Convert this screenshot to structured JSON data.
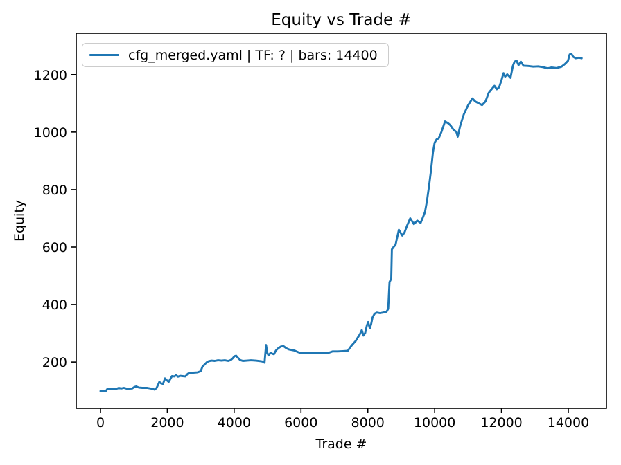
{
  "chart_data": {
    "type": "line",
    "title": "Equity vs Trade #",
    "xlabel": "Trade #",
    "ylabel": "Equity",
    "legend": "cfg_merged.yaml | TF: ? | bars: 14400",
    "legend_position": "upper left",
    "grid": false,
    "line_color": "#1f77b4",
    "axis_color": "#000000",
    "legend_border_color": "#cccccc",
    "xlim": [
      -726,
      15141
    ],
    "ylim": [
      39,
      1344
    ],
    "x_ticks": [
      0,
      2000,
      4000,
      6000,
      8000,
      10000,
      12000,
      14000
    ],
    "y_ticks": [
      200,
      400,
      600,
      800,
      1000,
      1200
    ],
    "points": [
      [
        0,
        99
      ],
      [
        160,
        99
      ],
      [
        210,
        107
      ],
      [
        480,
        107
      ],
      [
        550,
        110
      ],
      [
        620,
        108
      ],
      [
        700,
        110
      ],
      [
        800,
        107
      ],
      [
        950,
        108
      ],
      [
        1010,
        113
      ],
      [
        1070,
        115
      ],
      [
        1150,
        111
      ],
      [
        1250,
        110
      ],
      [
        1400,
        110
      ],
      [
        1550,
        107
      ],
      [
        1620,
        104
      ],
      [
        1680,
        110
      ],
      [
        1720,
        120
      ],
      [
        1760,
        131
      ],
      [
        1810,
        126
      ],
      [
        1870,
        124
      ],
      [
        1930,
        143
      ],
      [
        1990,
        136
      ],
      [
        2040,
        131
      ],
      [
        2090,
        141
      ],
      [
        2140,
        151
      ],
      [
        2210,
        150
      ],
      [
        2260,
        154
      ],
      [
        2320,
        149
      ],
      [
        2380,
        152
      ],
      [
        2460,
        151
      ],
      [
        2540,
        150
      ],
      [
        2600,
        158
      ],
      [
        2660,
        163
      ],
      [
        2780,
        163
      ],
      [
        2900,
        164
      ],
      [
        3000,
        168
      ],
      [
        3050,
        184
      ],
      [
        3120,
        192
      ],
      [
        3180,
        199
      ],
      [
        3240,
        203
      ],
      [
        3320,
        205
      ],
      [
        3420,
        204
      ],
      [
        3520,
        206
      ],
      [
        3620,
        205
      ],
      [
        3720,
        206
      ],
      [
        3820,
        204
      ],
      [
        3900,
        207
      ],
      [
        3960,
        213
      ],
      [
        4010,
        220
      ],
      [
        4060,
        222
      ],
      [
        4110,
        215
      ],
      [
        4180,
        207
      ],
      [
        4260,
        204
      ],
      [
        4380,
        205
      ],
      [
        4500,
        206
      ],
      [
        4650,
        205
      ],
      [
        4800,
        203
      ],
      [
        4870,
        201
      ],
      [
        4910,
        198
      ],
      [
        4955,
        259
      ],
      [
        4990,
        232
      ],
      [
        5030,
        223
      ],
      [
        5090,
        232
      ],
      [
        5140,
        229
      ],
      [
        5190,
        227
      ],
      [
        5250,
        240
      ],
      [
        5310,
        247
      ],
      [
        5400,
        254
      ],
      [
        5480,
        255
      ],
      [
        5560,
        248
      ],
      [
        5640,
        244
      ],
      [
        5720,
        242
      ],
      [
        5800,
        240
      ],
      [
        5900,
        235
      ],
      [
        5970,
        232
      ],
      [
        6100,
        233
      ],
      [
        6250,
        232
      ],
      [
        6400,
        233
      ],
      [
        6550,
        232
      ],
      [
        6700,
        231
      ],
      [
        6850,
        233
      ],
      [
        6950,
        237
      ],
      [
        7100,
        237
      ],
      [
        7250,
        238
      ],
      [
        7400,
        239
      ],
      [
        7460,
        249
      ],
      [
        7520,
        258
      ],
      [
        7580,
        266
      ],
      [
        7640,
        274
      ],
      [
        7700,
        285
      ],
      [
        7760,
        296
      ],
      [
        7820,
        311
      ],
      [
        7870,
        292
      ],
      [
        7920,
        301
      ],
      [
        7970,
        327
      ],
      [
        8010,
        339
      ],
      [
        8060,
        317
      ],
      [
        8100,
        332
      ],
      [
        8140,
        355
      ],
      [
        8200,
        368
      ],
      [
        8270,
        372
      ],
      [
        8360,
        370
      ],
      [
        8460,
        372
      ],
      [
        8560,
        375
      ],
      [
        8610,
        385
      ],
      [
        8650,
        478
      ],
      [
        8700,
        490
      ],
      [
        8720,
        592
      ],
      [
        8770,
        600
      ],
      [
        8830,
        608
      ],
      [
        8930,
        660
      ],
      [
        9030,
        640
      ],
      [
        9100,
        651
      ],
      [
        9180,
        676
      ],
      [
        9270,
        700
      ],
      [
        9380,
        680
      ],
      [
        9480,
        692
      ],
      [
        9580,
        684
      ],
      [
        9650,
        704
      ],
      [
        9710,
        722
      ],
      [
        9770,
        760
      ],
      [
        9830,
        810
      ],
      [
        9890,
        865
      ],
      [
        9950,
        930
      ],
      [
        10000,
        963
      ],
      [
        10060,
        975
      ],
      [
        10120,
        978
      ],
      [
        10200,
        1000
      ],
      [
        10310,
        1037
      ],
      [
        10400,
        1031
      ],
      [
        10470,
        1024
      ],
      [
        10560,
        1009
      ],
      [
        10650,
        1000
      ],
      [
        10690,
        984
      ],
      [
        10760,
        1020
      ],
      [
        10870,
        1061
      ],
      [
        11000,
        1093
      ],
      [
        11130,
        1117
      ],
      [
        11220,
        1106
      ],
      [
        11320,
        1100
      ],
      [
        11420,
        1094
      ],
      [
        11520,
        1106
      ],
      [
        11620,
        1137
      ],
      [
        11710,
        1150
      ],
      [
        11790,
        1161
      ],
      [
        11860,
        1149
      ],
      [
        11930,
        1156
      ],
      [
        12000,
        1181
      ],
      [
        12060,
        1205
      ],
      [
        12110,
        1193
      ],
      [
        12170,
        1201
      ],
      [
        12270,
        1189
      ],
      [
        12340,
        1230
      ],
      [
        12390,
        1245
      ],
      [
        12450,
        1249
      ],
      [
        12510,
        1233
      ],
      [
        12580,
        1245
      ],
      [
        12660,
        1231
      ],
      [
        12800,
        1230
      ],
      [
        12950,
        1228
      ],
      [
        13100,
        1229
      ],
      [
        13250,
        1226
      ],
      [
        13380,
        1222
      ],
      [
        13500,
        1225
      ],
      [
        13650,
        1223
      ],
      [
        13800,
        1228
      ],
      [
        13900,
        1237
      ],
      [
        13990,
        1248
      ],
      [
        14040,
        1270
      ],
      [
        14090,
        1273
      ],
      [
        14150,
        1262
      ],
      [
        14220,
        1257
      ],
      [
        14320,
        1259
      ],
      [
        14400,
        1257
      ]
    ]
  }
}
